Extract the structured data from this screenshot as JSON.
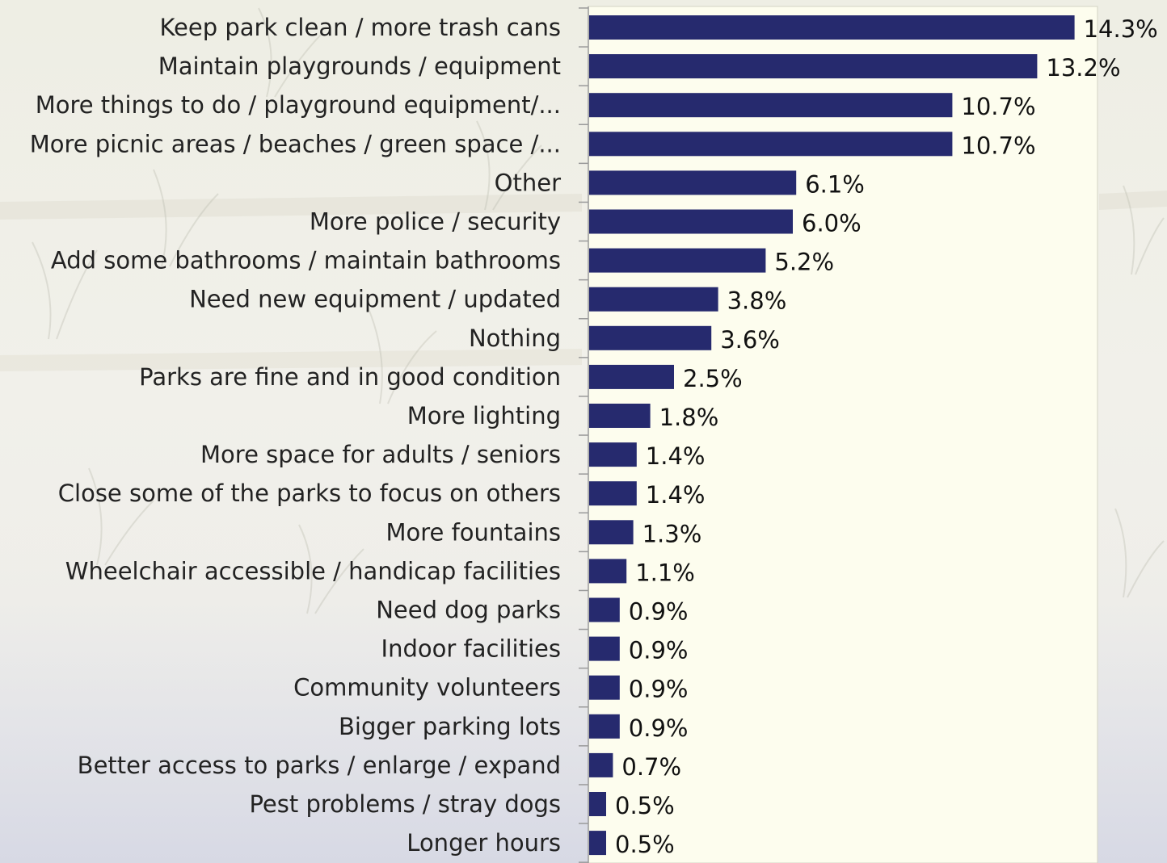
{
  "chart_data": {
    "type": "bar",
    "orientation": "horizontal",
    "categories": [
      "Keep park clean / more trash cans",
      "Maintain playgrounds / equipment",
      "More things to do / playground equipment/...",
      "More picnic areas / beaches / green space /...",
      "Other",
      "More police / security",
      "Add some bathrooms / maintain bathrooms",
      "Need new equipment / updated",
      "Nothing",
      "Parks are fine and in good condition",
      "More lighting",
      "More space for adults / seniors",
      "Close some of the parks to focus on others",
      "More fountains",
      "Wheelchair accessible / handicap facilities",
      "Need dog parks",
      "Indoor facilities",
      "Community volunteers",
      "Bigger parking lots",
      "Better access to parks / enlarge / expand",
      "Pest problems / stray dogs",
      "Longer hours"
    ],
    "values": [
      14.3,
      13.2,
      10.7,
      10.7,
      6.1,
      6.0,
      5.2,
      3.8,
      3.6,
      2.5,
      1.8,
      1.4,
      1.4,
      1.3,
      1.1,
      0.9,
      0.9,
      0.9,
      0.9,
      0.7,
      0.5,
      0.5
    ],
    "value_labels": [
      "14.3%",
      "13.2%",
      "10.7%",
      "10.7%",
      "6.1%",
      "6.0%",
      "5.2%",
      "3.8%",
      "3.6%",
      "2.5%",
      "1.8%",
      "1.4%",
      "1.4%",
      "1.3%",
      "1.1%",
      "0.9%",
      "0.9%",
      "0.9%",
      "0.9%",
      "0.7%",
      "0.5%",
      "0.5%"
    ],
    "title": "",
    "xlabel": "",
    "ylabel": "",
    "xlim": [
      0,
      15
    ],
    "grid": false,
    "legend": "none",
    "colors": {
      "bar": "#262a6e",
      "plot_area": "#fdfdee",
      "axis": "#9a9a9a"
    }
  }
}
